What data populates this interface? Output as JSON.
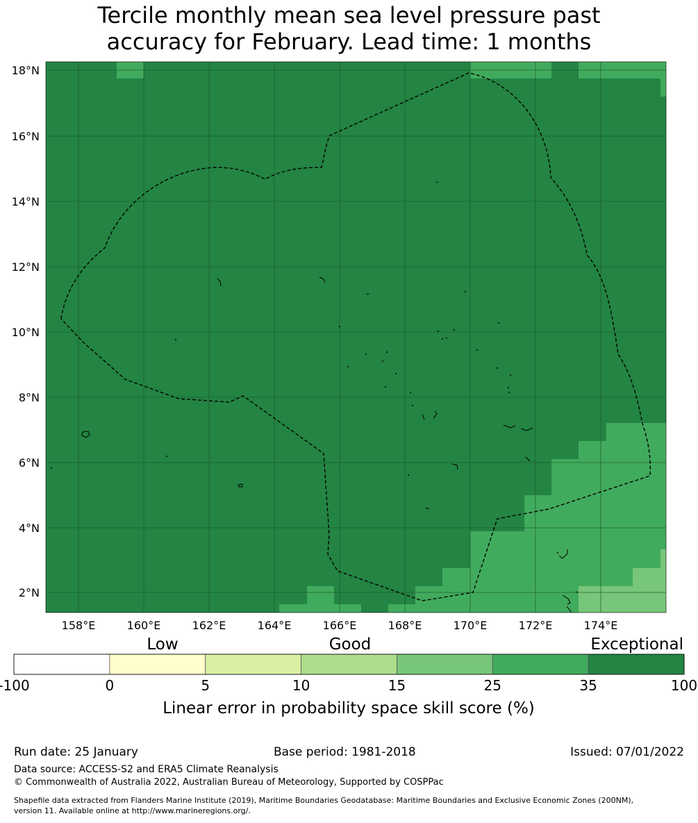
{
  "title": {
    "line1": "Tercile monthly mean sea level pressure past",
    "line2": "accuracy for February. Lead time: 1 months"
  },
  "map": {
    "lon_range": [
      157.0,
      176.0
    ],
    "lat_range": [
      1.4,
      18.3
    ],
    "lon_ticks": [
      "158°E",
      "160°E",
      "162°E",
      "164°E",
      "166°E",
      "168°E",
      "170°E",
      "172°E",
      "174°E"
    ],
    "lat_ticks": [
      "18°N",
      "16°N",
      "14°N",
      "12°N",
      "10°N",
      "8°N",
      "6°N",
      "4°N",
      "2°N"
    ],
    "gridlines": true,
    "base_category": "35-100",
    "overlay": "dashed Exclusive Economic Zone boundary"
  },
  "legend": {
    "categories": [
      "Low",
      "Good",
      "Exceptional"
    ],
    "tick_labels": [
      "-100",
      "0",
      "5",
      "10",
      "15",
      "25",
      "35",
      "100"
    ],
    "colors": [
      "#ffffff",
      "#ffffcc",
      "#d9f0a3",
      "#addd8e",
      "#78c679",
      "#41ab5d",
      "#238443"
    ],
    "xlabel": "Linear error in probability space skill score (%)"
  },
  "footer": {
    "run_date": "Run date: 25 January",
    "base_period": "Base period: 1981-2018",
    "issued": "Issued: 07/01/2022",
    "data_source": "Data source: ACCESS-S2 and ERA5 Climate Reanalysis",
    "copyright": "© Commonwealth of Australia 2022, Australian Bureau of Meteorology, Supported by COSPPac",
    "shapefile_line1": "Shapefile data extracted from Flanders Marine Institute (2019), Maritime Boundaries Geodatabase: Maritime Boundaries and Exclusive Economic Zones (200NM),",
    "shapefile_line2": "version 11. Available online at http://www.marineregions.org/."
  }
}
